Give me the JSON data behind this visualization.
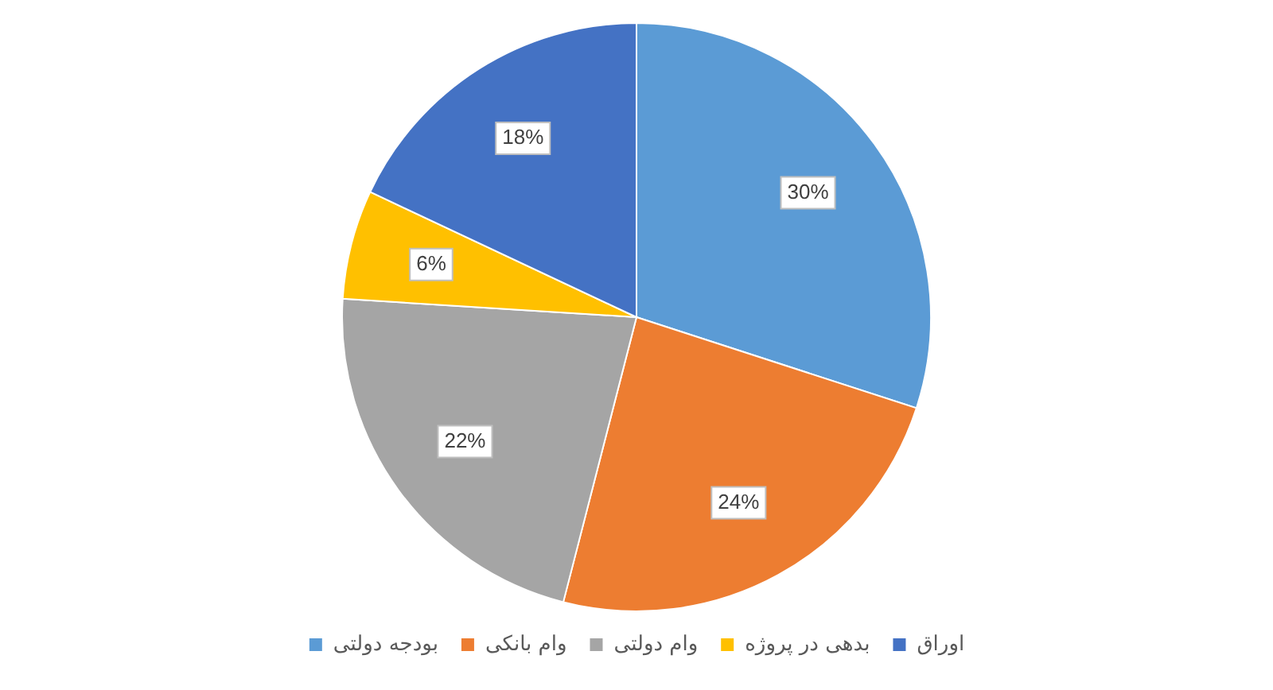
{
  "chart_data": {
    "type": "pie",
    "categories": [
      "بودجه دولتی",
      "وام بانکی",
      "وام دولتی",
      "بدهی در پروژه",
      "اوراق"
    ],
    "values": [
      30,
      24,
      22,
      6,
      18
    ],
    "colors": [
      "#5b9bd5",
      "#ed7d31",
      "#a5a5a5",
      "#ffc000",
      "#4472c4"
    ],
    "value_labels": [
      "30%",
      "24%",
      "22%",
      "6%",
      "18%"
    ],
    "legend": "bottom"
  }
}
